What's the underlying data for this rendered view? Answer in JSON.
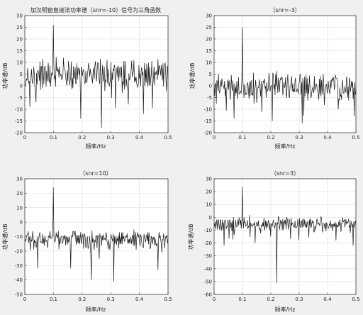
{
  "figure": {
    "background": "#f0f0f0",
    "axes_background": "#ffffff",
    "grid_color": "#dcdcdc",
    "line_color": "#1a1a1a"
  },
  "chart_data": [
    {
      "type": "line",
      "title": "加汉明窗直接法功率谱（snr=-10）信号为三角函数",
      "xlabel": "频率/Hz",
      "ylabel": "功率谱/dB",
      "xlim": [
        0,
        0.5
      ],
      "ylim": [
        -20,
        30
      ],
      "xticks": [
        "0",
        "0.1",
        "0.2",
        "0.3",
        "0.4",
        "0.5"
      ],
      "yticks": [
        "-20",
        "-15",
        "-10",
        "-5",
        "0",
        "5",
        "10",
        "15",
        "20",
        "25",
        "30"
      ],
      "grid": true,
      "series": [
        {
          "peak": {
            "x": 0.1,
            "y": 26
          },
          "level": 5,
          "spread": 5,
          "min_dips": [
            {
              "x": 0.04,
              "y": -7
            },
            {
              "x": 0.195,
              "y": -14
            },
            {
              "x": 0.268,
              "y": -18
            },
            {
              "x": 0.415,
              "y": -12
            }
          ]
        }
      ]
    },
    {
      "type": "line",
      "title": "（snr=-3）",
      "xlabel": "频率/Hz",
      "ylabel": "功率谱/dB",
      "xlim": [
        0,
        0.5
      ],
      "ylim": [
        -20,
        30
      ],
      "xticks": [
        "0",
        "0.1",
        "0.2",
        "0.3",
        "0.4",
        "0.5"
      ],
      "yticks": [
        "-20",
        "-15",
        "-10",
        "-5",
        "0",
        "5",
        "10",
        "15",
        "20",
        "25",
        "30"
      ],
      "grid": true,
      "series": [
        {
          "peak": {
            "x": 0.1,
            "y": 25
          },
          "level": 0,
          "spread": 4.5,
          "min_dips": [
            {
              "x": 0.07,
              "y": -14
            },
            {
              "x": 0.205,
              "y": -15
            },
            {
              "x": 0.31,
              "y": -16
            },
            {
              "x": 0.495,
              "y": -13
            }
          ]
        }
      ]
    },
    {
      "type": "line",
      "title": "（snr=10）",
      "xlabel": "频率/Hz",
      "ylabel": "功率谱/dB",
      "xlim": [
        0,
        0.5
      ],
      "ylim": [
        -50,
        30
      ],
      "xticks": [
        "0",
        "0.1",
        "0.2",
        "0.3",
        "0.4",
        "0.5"
      ],
      "yticks": [
        "-50",
        "-40",
        "-30",
        "-20",
        "-10",
        "0",
        "10",
        "20",
        "30"
      ],
      "grid": true,
      "series": [
        {
          "peak": {
            "x": 0.1,
            "y": 24
          },
          "level": -12,
          "spread": 5,
          "min_dips": [
            {
              "x": 0.045,
              "y": -32
            },
            {
              "x": 0.16,
              "y": -32
            },
            {
              "x": 0.233,
              "y": -40
            },
            {
              "x": 0.31,
              "y": -41
            },
            {
              "x": 0.465,
              "y": -33
            }
          ]
        }
      ]
    },
    {
      "type": "line",
      "title": "（snr=3）",
      "xlabel": "频率/Hz",
      "ylabel": "功率谱/dB",
      "xlim": [
        0,
        0.5
      ],
      "ylim": [
        -60,
        30
      ],
      "xticks": [
        "0",
        "0.1",
        "0.2",
        "0.3",
        "0.4",
        "0.5"
      ],
      "yticks": [
        "-60",
        "-50",
        "-40",
        "-30",
        "-20",
        "-10",
        "0",
        "10",
        "20",
        "30"
      ],
      "grid": true,
      "series": [
        {
          "peak": {
            "x": 0.1,
            "y": 24
          },
          "level": -5,
          "spread": 4.5,
          "min_dips": [
            {
              "x": 0.035,
              "y": -22
            },
            {
              "x": 0.145,
              "y": -20
            },
            {
              "x": 0.22,
              "y": -51
            },
            {
              "x": 0.43,
              "y": -18
            },
            {
              "x": 0.49,
              "y": -22
            }
          ]
        }
      ]
    }
  ]
}
